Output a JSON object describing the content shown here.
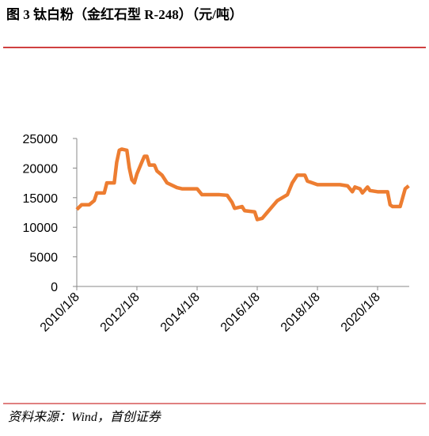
{
  "chart_data": {
    "type": "line",
    "title": "图 3 钛白粉（金红石型 R-248）（元/吨）",
    "source": "资料来源：Wind，首创证券",
    "x": [
      "2010-01-08",
      "2010-03-08",
      "2010-06-08",
      "2010-08-08",
      "2010-09-08",
      "2010-12-08",
      "2011-01-08",
      "2011-04-08",
      "2011-05-08",
      "2011-06-08",
      "2011-07-08",
      "2011-09-08",
      "2011-10-08",
      "2011-11-08",
      "2011-12-08",
      "2012-01-08",
      "2012-03-08",
      "2012-04-08",
      "2012-05-08",
      "2012-06-08",
      "2012-08-08",
      "2012-09-08",
      "2012-11-08",
      "2013-01-08",
      "2013-05-08",
      "2013-07-08",
      "2014-01-08",
      "2014-03-08",
      "2014-10-08",
      "2015-01-08",
      "2015-03-08",
      "2015-04-08",
      "2015-07-08",
      "2015-08-08",
      "2015-12-08",
      "2016-01-08",
      "2016-03-08",
      "2016-05-08",
      "2016-07-08",
      "2016-09-08",
      "2016-11-08",
      "2017-01-08",
      "2017-03-08",
      "2017-05-08",
      "2017-08-08",
      "2017-09-08",
      "2017-11-08",
      "2018-01-08",
      "2018-10-08",
      "2019-01-08",
      "2019-03-08",
      "2019-04-08",
      "2019-06-08",
      "2019-07-08",
      "2019-09-08",
      "2019-10-08",
      "2020-01-08",
      "2020-05-08",
      "2020-06-08",
      "2020-07-08",
      "2020-10-08",
      "2020-11-08",
      "2020-12-08",
      "2021-01-20"
    ],
    "series": [
      {
        "name": "钛白粉",
        "color": "#ed7d31",
        "values": [
          13000,
          13800,
          13800,
          14500,
          15800,
          15800,
          17500,
          17500,
          21000,
          23000,
          23200,
          23000,
          20000,
          18000,
          17500,
          19000,
          21000,
          22000,
          22000,
          20500,
          20500,
          19500,
          18800,
          17500,
          16700,
          16500,
          16500,
          15500,
          15500,
          15400,
          14200,
          13200,
          13500,
          12800,
          12600,
          11300,
          11500,
          12500,
          13500,
          14500,
          15000,
          15500,
          17500,
          18800,
          18800,
          17800,
          17500,
          17200,
          17200,
          17000,
          16000,
          16800,
          16500,
          15800,
          16800,
          16200,
          16000,
          16000,
          13800,
          13500,
          13500,
          15000,
          16500,
          17000
        ]
      }
    ],
    "xlim": [
      "2010-01-08",
      "2021-01-26"
    ],
    "xticks": [
      {
        "value": "2010-01-08",
        "label": "2010/1/8"
      },
      {
        "value": "2012-01-08",
        "label": "2012/1/8"
      },
      {
        "value": "2014-01-08",
        "label": "2014/1/8"
      },
      {
        "value": "2016-01-08",
        "label": "2016/1/8"
      },
      {
        "value": "2018-01-08",
        "label": "2018/1/8"
      },
      {
        "value": "2020-01-08",
        "label": "2020/1/8"
      }
    ],
    "ylim": [
      0,
      25000
    ],
    "yticks": [
      0,
      5000,
      10000,
      15000,
      20000,
      25000
    ],
    "grid": false
  }
}
